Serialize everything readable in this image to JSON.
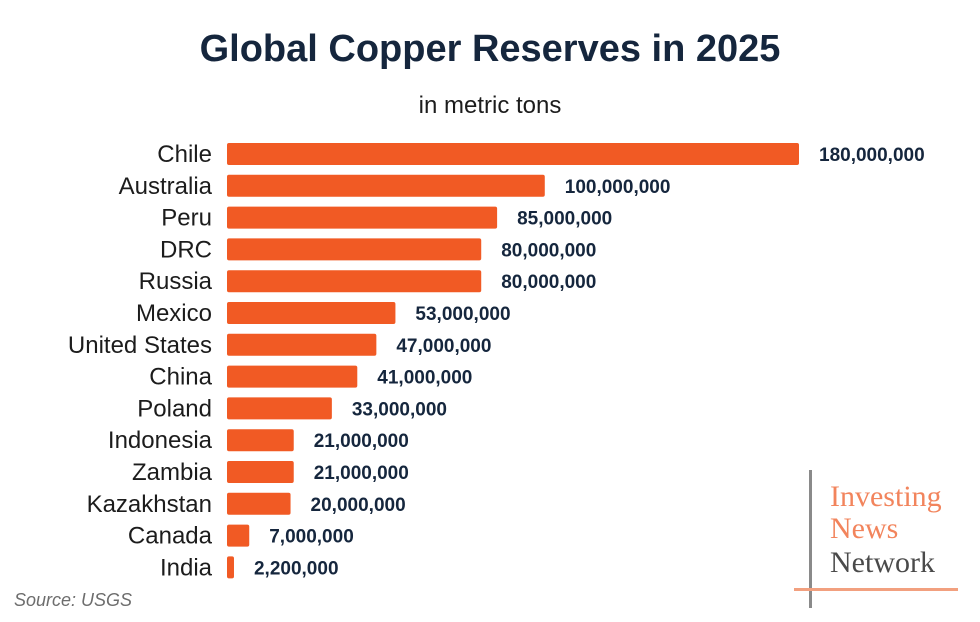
{
  "title": "Global Copper Reserves in 2025",
  "subtitle": "in metric tons",
  "source": "Source: USGS",
  "logo": {
    "line1": "Investing",
    "line2": "News",
    "line3": "Network"
  },
  "colors": {
    "bar": "#f15a24",
    "title": "#15263d",
    "value_label": "#15263d",
    "logo_accent": "#f2845c",
    "logo_dark": "#4a4a4a"
  },
  "chart_data": {
    "type": "bar",
    "orientation": "horizontal",
    "title": "Global Copper Reserves in 2025",
    "subtitle": "in metric tons",
    "categories": [
      "Chile",
      "Australia",
      "Peru",
      "DRC",
      "Russia",
      "Mexico",
      "United States",
      "China",
      "Poland",
      "Indonesia",
      "Zambia",
      "Kazakhstan",
      "Canada",
      "India"
    ],
    "values": [
      180000000,
      100000000,
      85000000,
      80000000,
      80000000,
      53000000,
      47000000,
      41000000,
      33000000,
      21000000,
      21000000,
      20000000,
      7000000,
      2200000
    ],
    "value_labels": [
      "180,000,000",
      "100,000,000",
      "85,000,000",
      "80,000,000",
      "80,000,000",
      "53,000,000",
      "47,000,000",
      "41,000,000",
      "33,000,000",
      "21,000,000",
      "21,000,000",
      "20,000,000",
      "7,000,000",
      "2,200,000"
    ],
    "xlabel": "",
    "ylabel": "",
    "xlim": [
      0,
      180000000
    ],
    "grid": false,
    "legend": "none"
  }
}
